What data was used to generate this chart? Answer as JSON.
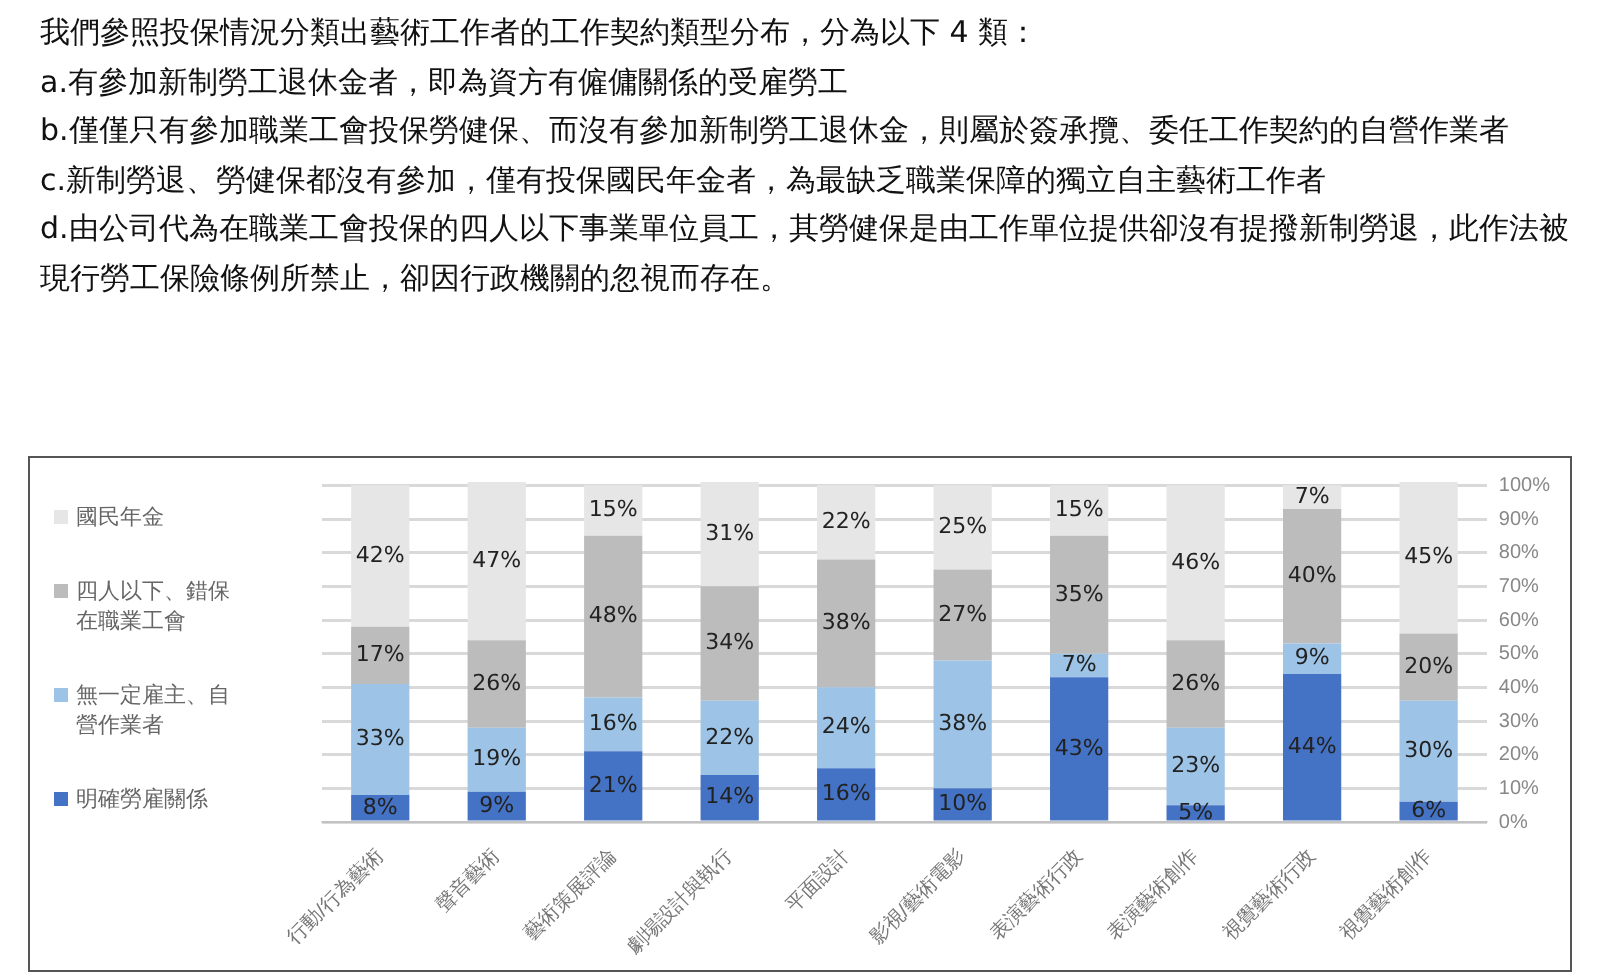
{
  "chart_data": {
    "type": "bar",
    "stacked": true,
    "title": "我們參照投保情況分類出藝術工作者的工作契約類型分布，分為以下 4 類：",
    "annotations": [
      "a.有參加新制勞工退休金者，即為資方有僱傭關係的受雇勞工",
      "b.僅僅只有參加職業工會投保勞健保、而沒有參加新制勞工退休金，則屬於簽承攬、委任工作契約的自營作業者",
      "c.新制勞退、勞健保都沒有參加，僅有投保國民年金者，為最缺乏職業保障的獨立自主藝術工作者",
      "d.由公司代為在職業工會投保的四人以下事業單位員工，其勞健保是由工作單位提供卻沒有提撥新制勞退，此作法被現行勞工保險條例所禁止，卻因行政機關的忽視而存在。"
    ],
    "categories": [
      "行動/行為藝術",
      "聲音藝術",
      "藝術策展評論",
      "劇場設計與執行",
      "平面設計",
      "影視/藝術電影",
      "表演藝術行政",
      "表演藝術創作",
      "視覺藝術行政",
      "視覺藝術創作"
    ],
    "series": [
      {
        "name": "明確勞雇關係",
        "color": "#4472c4",
        "values": [
          8,
          9,
          21,
          14,
          16,
          10,
          43,
          5,
          44,
          6
        ],
        "value_labels": [
          "8%",
          "9%",
          "21%",
          "14%",
          "16%",
          "10%",
          "43%",
          "5%",
          "44%",
          "6%"
        ]
      },
      {
        "name": "無一定雇主、自營作業者",
        "color": "#9dc3e6",
        "values": [
          33,
          19,
          16,
          22,
          24,
          38,
          7,
          23,
          9,
          30
        ],
        "value_labels": [
          "33%",
          "19%",
          "16%",
          "22%",
          "24%",
          "38%",
          "7%",
          "23%",
          "9%",
          "30%"
        ]
      },
      {
        "name": "四人以下、錯保在職業工會",
        "color": "#bcbcbc",
        "values": [
          17,
          26,
          48,
          34,
          38,
          27,
          35,
          26,
          40,
          20
        ],
        "value_labels": [
          "17%",
          "26%",
          "48%",
          "34%",
          "38%",
          "27%",
          "35%",
          "26%",
          "40%",
          "20%"
        ]
      },
      {
        "name": "國民年金",
        "color": "#e6e6e6",
        "values": [
          42,
          47,
          15,
          31,
          22,
          25,
          15,
          46,
          7,
          45
        ],
        "value_labels": [
          "42%",
          "47%",
          "15%",
          "31%",
          "22%",
          "25%",
          "15%",
          "46%",
          "7%",
          "45%"
        ]
      }
    ],
    "ylim": [
      0,
      101
    ],
    "yticks": [
      {
        "value": 0,
        "label": "0%"
      },
      {
        "value": 10,
        "label": "10%"
      },
      {
        "value": 20,
        "label": "20%"
      },
      {
        "value": 30,
        "label": "30%"
      },
      {
        "value": 40,
        "label": "40%"
      },
      {
        "value": 50,
        "label": "50%"
      },
      {
        "value": 60,
        "label": "60%"
      },
      {
        "value": 70,
        "label": "70%"
      },
      {
        "value": 80,
        "label": "80%"
      },
      {
        "value": 90,
        "label": "90%"
      },
      {
        "value": 100,
        "label": "100%"
      }
    ],
    "grid": "y",
    "legend": "left"
  }
}
